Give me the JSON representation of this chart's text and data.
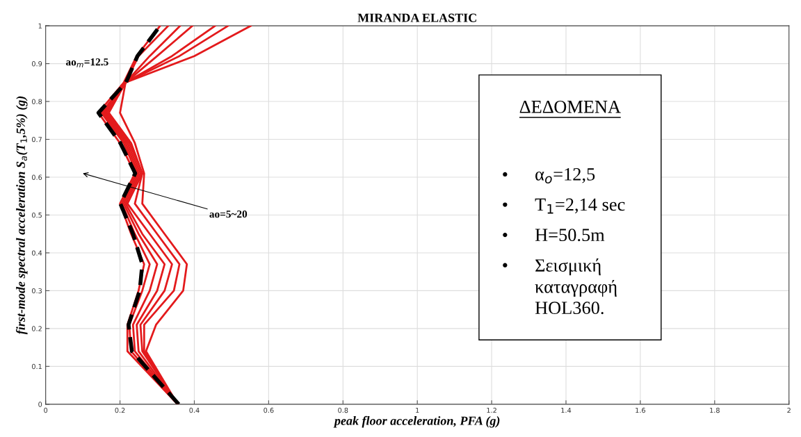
{
  "chart_data": {
    "type": "line",
    "title": "MIRANDA ELASTIC",
    "xlabel": "peak floor acceleration, PFA (g)",
    "ylabel": "first-mode spectral acceleration S$_{a}$(T$_{1}$,5%) (g)",
    "xlim": [
      0,
      2
    ],
    "xticks": [
      0,
      0.2,
      0.4,
      0.6,
      0.8,
      1,
      1.2,
      1.4,
      1.6,
      1.8,
      2
    ],
    "ylim": [
      0,
      1
    ],
    "yticks": [
      0,
      0.1,
      0.2,
      0.3,
      0.4,
      0.5,
      0.6,
      0.7,
      0.8,
      0.9,
      1
    ],
    "grid": true,
    "legend": false,
    "series": [
      {
        "color": "#e31a1c",
        "x": [
          0.355,
          0.22,
          0.22,
          0.25,
          0.265,
          0.23,
          0.2,
          0.24,
          0.2,
          0.142,
          0.21,
          0.245,
          0.308
        ],
        "values": [
          0,
          0.14,
          0.21,
          0.3,
          0.37,
          0.45,
          0.53,
          0.61,
          0.69,
          0.77,
          0.85,
          0.92,
          1
        ]
      },
      {
        "color": "#e31a1c",
        "x": [
          0.355,
          0.23,
          0.225,
          0.26,
          0.28,
          0.24,
          0.205,
          0.245,
          0.21,
          0.15,
          0.215,
          0.25,
          0.33
        ],
        "values": [
          0,
          0.14,
          0.21,
          0.3,
          0.37,
          0.45,
          0.53,
          0.61,
          0.69,
          0.77,
          0.85,
          0.92,
          1
        ]
      },
      {
        "color": "#e31a1c",
        "x": [
          0.355,
          0.24,
          0.235,
          0.28,
          0.3,
          0.25,
          0.21,
          0.25,
          0.215,
          0.155,
          0.215,
          0.28,
          0.362
        ],
        "values": [
          0,
          0.14,
          0.21,
          0.3,
          0.37,
          0.45,
          0.53,
          0.61,
          0.69,
          0.77,
          0.85,
          0.92,
          1
        ]
      },
      {
        "color": "#e31a1c",
        "x": [
          0.355,
          0.25,
          0.245,
          0.3,
          0.32,
          0.26,
          0.215,
          0.255,
          0.22,
          0.16,
          0.215,
          0.3,
          0.395
        ],
        "values": [
          0,
          0.14,
          0.21,
          0.3,
          0.37,
          0.45,
          0.53,
          0.61,
          0.69,
          0.77,
          0.85,
          0.92,
          1
        ]
      },
      {
        "color": "#e31a1c",
        "x": [
          0.355,
          0.26,
          0.255,
          0.32,
          0.34,
          0.28,
          0.22,
          0.26,
          0.225,
          0.165,
          0.215,
          0.34,
          0.456
        ],
        "values": [
          0,
          0.14,
          0.21,
          0.3,
          0.37,
          0.45,
          0.53,
          0.61,
          0.69,
          0.77,
          0.85,
          0.92,
          1
        ]
      },
      {
        "color": "#e31a1c",
        "x": [
          0.355,
          0.265,
          0.265,
          0.345,
          0.36,
          0.3,
          0.24,
          0.26,
          0.23,
          0.17,
          0.215,
          0.36,
          0.491
        ],
        "values": [
          0,
          0.14,
          0.21,
          0.3,
          0.37,
          0.45,
          0.53,
          0.61,
          0.69,
          0.77,
          0.85,
          0.92,
          1
        ]
      },
      {
        "color": "#e31a1c",
        "x": [
          0.355,
          0.27,
          0.297,
          0.37,
          0.38,
          0.32,
          0.26,
          0.265,
          0.24,
          0.2,
          0.215,
          0.4,
          0.552
        ],
        "values": [
          0,
          0.14,
          0.21,
          0.3,
          0.37,
          0.45,
          0.53,
          0.61,
          0.69,
          0.77,
          0.85,
          0.92,
          1
        ]
      },
      {
        "color": "#000000",
        "line_style": "dashed",
        "x": [
          0.358,
          0.232,
          0.223,
          0.253,
          0.26,
          0.235,
          0.201,
          0.241,
          0.201,
          0.142,
          0.216,
          0.247,
          0.308
        ],
        "values": [
          0,
          0.14,
          0.21,
          0.3,
          0.37,
          0.45,
          0.53,
          0.61,
          0.69,
          0.77,
          0.85,
          0.92,
          1
        ]
      }
    ],
    "annotations": [
      "ao$_{m}$=12.5",
      "ao=5~20",
      "ΔΕΔΟΜΕΝΑ",
      "• α$_{o}$=12,5",
      "• T$_{1}$=2,14 sec",
      "• H=50.5m",
      "• Σεισμική\nκαταγραφή\nHOL360."
    ]
  }
}
